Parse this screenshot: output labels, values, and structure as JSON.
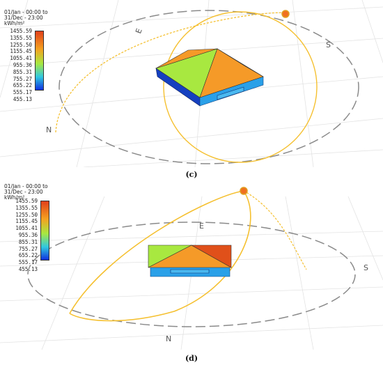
{
  "panels": [
    {
      "id": "c",
      "label": "(c)",
      "legend": {
        "period_line1": "01/Jan - 00:00 to",
        "period_line2": "31/Dec - 23:00",
        "unit": "kWh/m²",
        "ticks": [
          "1455.59",
          "1355.55",
          "1255.50",
          "1155.45",
          "1055.41",
          "955.36",
          "855.31",
          "755.27",
          "655.22",
          "555.17",
          "455.13"
        ]
      },
      "compass": {
        "north": "N",
        "south": "S",
        "east": "E"
      }
    },
    {
      "id": "d",
      "label": "(d)",
      "legend": {
        "period_line1": "01/Jan - 00:00 to",
        "period_line2": "31/Dec - 23:00",
        "unit": "kWh/m²",
        "ticks": [
          "1455.59",
          "1355.55",
          "1255.50",
          "1155.45",
          "1055.41",
          "955.36",
          "855.31",
          "755.27",
          "655.22",
          "555.17",
          "455.13"
        ]
      },
      "compass": {
        "north": "N",
        "south": "S",
        "east": "E"
      }
    }
  ],
  "colors": {
    "scale_top": "#e0401a",
    "scale_mid_high": "#f5a020",
    "scale_mid": "#a8e840",
    "scale_mid_low": "#30c8e0",
    "scale_bottom": "#1030e0",
    "sunpath": "#f5c030",
    "roof_orange": "#f59a28",
    "roof_green": "#a8e840",
    "roof_red": "#e0501a",
    "wall_blue": "#2aa0e8",
    "wall_dark": "#1540c0"
  }
}
